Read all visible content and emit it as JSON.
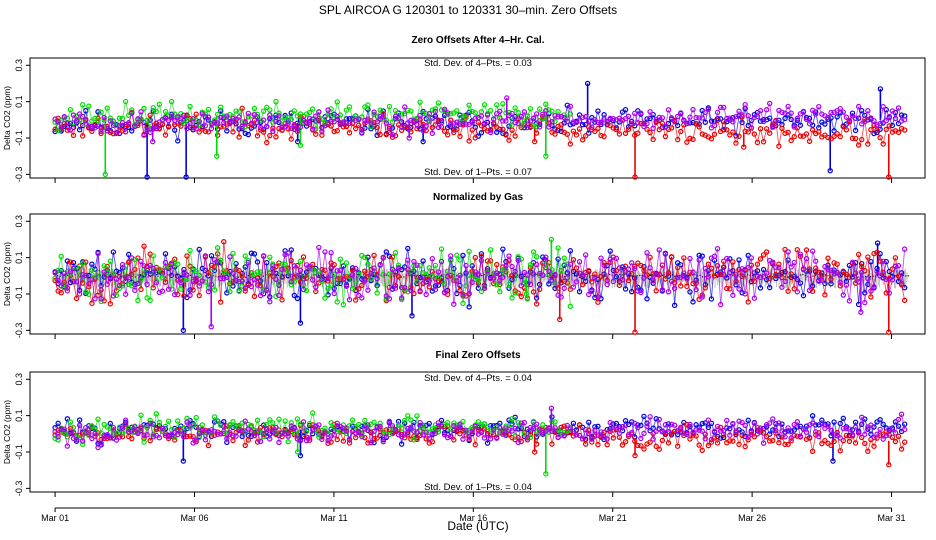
{
  "chart_data": {
    "type": "scatter",
    "title": "SPL    AIRCOA G    120301 to 120331    30–min. Zero Offsets",
    "xlabel": "Date (UTC)",
    "x_ticks": [
      "Mar 01",
      "Mar 06",
      "Mar 11",
      "Mar 16",
      "Mar 21",
      "Mar 26",
      "Mar 31"
    ],
    "x_tick_days": [
      1,
      6,
      11,
      16,
      21,
      26,
      31
    ],
    "xlim": [
      0.1,
      32.2
    ],
    "series_colors": {
      "blue": "#0000dd",
      "red": "#ee0000",
      "green": "#00dd00",
      "purple": "#aa00ee",
      "black": "#000000"
    },
    "panels": [
      {
        "title": "Zero Offsets After 4–Hr. Cal.",
        "ylabel": "Delta CO2 (ppm)",
        "ylim": [
          -0.32,
          0.34
        ],
        "yticks": [
          -0.3,
          -0.1,
          0.1,
          0.3
        ],
        "ytick_labels": [
          "-0.3",
          "-0.1",
          "0.1",
          "0.3"
        ],
        "note_top": "Std. Dev. of 4–Pts. =  0.03",
        "note_bottom": "Std. Dev. of 1–Pts. =  0.07",
        "series": [
          {
            "name": "blue",
            "color": "#0000dd",
            "seed": 11,
            "base": [
              [
                1,
                -0.02
              ],
              [
                20,
                -0.02
              ],
              [
                32,
                0.0
              ]
            ],
            "noise": 0.035,
            "spikes": [
              [
                4.3,
                -0.33
              ],
              [
                5.7,
                -0.33
              ],
              [
                9.7,
                -0.12
              ],
              [
                14.2,
                -0.12
              ],
              [
                28.8,
                -0.28
              ],
              [
                30.6,
                0.17
              ],
              [
                20.1,
                0.2
              ]
            ]
          },
          {
            "name": "red",
            "color": "#ee0000",
            "seed": 23,
            "base": [
              [
                1,
                -0.03
              ],
              [
                18,
                -0.04
              ],
              [
                20,
                -0.06
              ],
              [
                32,
                -0.08
              ]
            ],
            "noise": 0.035,
            "spikes": [
              [
                18.2,
                -0.12
              ],
              [
                21.8,
                -0.33
              ],
              [
                30.9,
                -0.33
              ],
              [
                25.7,
                -0.15
              ]
            ]
          },
          {
            "name": "green",
            "color": "#00dd00",
            "seed": 37,
            "base": [
              [
                1,
                0.02
              ],
              [
                19,
                0.03
              ]
            ],
            "noise": 0.035,
            "spikes": [
              [
                2.8,
                -0.3
              ],
              [
                6.8,
                -0.2
              ],
              [
                9.8,
                -0.14
              ],
              [
                18.6,
                -0.2
              ]
            ],
            "end": 19.5
          },
          {
            "name": "purple",
            "color": "#aa00ee",
            "seed": 51,
            "base": [
              [
                1,
                -0.02
              ],
              [
                32,
                0.02
              ]
            ],
            "noise": 0.03,
            "spikes": [
              [
                4.5,
                -0.12
              ],
              [
                13.7,
                -0.1
              ],
              [
                17.2,
                0.12
              ]
            ]
          }
        ]
      },
      {
        "title": "Normalized by Gas",
        "ylabel": "Delta CO2 (ppm)",
        "ylim": [
          -0.32,
          0.34
        ],
        "yticks": [
          -0.3,
          -0.1,
          0.1,
          0.3
        ],
        "ytick_labels": [
          "-0.3",
          "-0.1",
          "0.1",
          "0.3"
        ],
        "note_top": "",
        "note_bottom": "",
        "gray_band": true,
        "series": [
          {
            "name": "blue",
            "color": "#0000dd",
            "seed": 61,
            "base": [
              [
                1,
                0.0
              ],
              [
                32,
                0.0
              ]
            ],
            "noise": 0.07,
            "spikes": [
              [
                5.6,
                -0.3
              ],
              [
                9.8,
                -0.26
              ],
              [
                13.8,
                -0.22
              ],
              [
                30.5,
                0.18
              ]
            ]
          },
          {
            "name": "red",
            "color": "#ee0000",
            "seed": 67,
            "base": [
              [
                1,
                0.0
              ],
              [
                32,
                0.0
              ]
            ],
            "noise": 0.07,
            "spikes": [
              [
                19.1,
                -0.24
              ],
              [
                21.8,
                -0.31
              ],
              [
                30.9,
                -0.31
              ]
            ]
          },
          {
            "name": "green",
            "color": "#00dd00",
            "seed": 71,
            "base": [
              [
                1,
                0.0
              ],
              [
                19,
                0.0
              ]
            ],
            "noise": 0.07,
            "spikes": [
              [
                18.8,
                0.2
              ],
              [
                17.9,
                -0.1
              ]
            ],
            "end": 19.5
          },
          {
            "name": "purple",
            "color": "#aa00ee",
            "seed": 79,
            "base": [
              [
                1,
                0.0
              ],
              [
                32,
                0.0
              ]
            ],
            "noise": 0.07,
            "spikes": [
              [
                6.6,
                -0.28
              ],
              [
                29.9,
                -0.2
              ]
            ]
          }
        ]
      },
      {
        "title": "Final Zero Offsets",
        "ylabel": "Delta CO2 (ppm)",
        "ylim": [
          -0.32,
          0.34
        ],
        "yticks": [
          -0.3,
          -0.1,
          0.1,
          0.3
        ],
        "ytick_labels": [
          "-0.3",
          "-0.1",
          "0.1",
          "0.3"
        ],
        "note_top": "Std. Dev. of 4–Pts. =  0.04",
        "note_bottom": "Std. Dev. of 1–Pts. =  0.04",
        "series": [
          {
            "name": "blue",
            "color": "#0000dd",
            "seed": 83,
            "base": [
              [
                1,
                0.02
              ],
              [
                32,
                0.03
              ]
            ],
            "noise": 0.03,
            "spikes": [
              [
                5.6,
                -0.15
              ],
              [
                9.8,
                -0.12
              ],
              [
                28.9,
                -0.15
              ]
            ]
          },
          {
            "name": "red",
            "color": "#ee0000",
            "seed": 89,
            "base": [
              [
                1,
                0.0
              ],
              [
                19,
                0.0
              ],
              [
                20,
                -0.02
              ],
              [
                32,
                -0.04
              ]
            ],
            "noise": 0.03,
            "spikes": [
              [
                18.2,
                -0.1
              ],
              [
                21.8,
                -0.12
              ],
              [
                30.9,
                -0.17
              ]
            ]
          },
          {
            "name": "green",
            "color": "#00dd00",
            "seed": 97,
            "base": [
              [
                1,
                0.03
              ],
              [
                19,
                0.03
              ]
            ],
            "noise": 0.03,
            "spikes": [
              [
                18.6,
                -0.22
              ],
              [
                9.7,
                -0.1
              ]
            ],
            "end": 19.5
          },
          {
            "name": "purple",
            "color": "#aa00ee",
            "seed": 101,
            "base": [
              [
                1,
                0.0
              ],
              [
                32,
                0.03
              ]
            ],
            "noise": 0.03,
            "spikes": [
              [
                18.8,
                0.14
              ]
            ]
          }
        ]
      }
    ]
  }
}
